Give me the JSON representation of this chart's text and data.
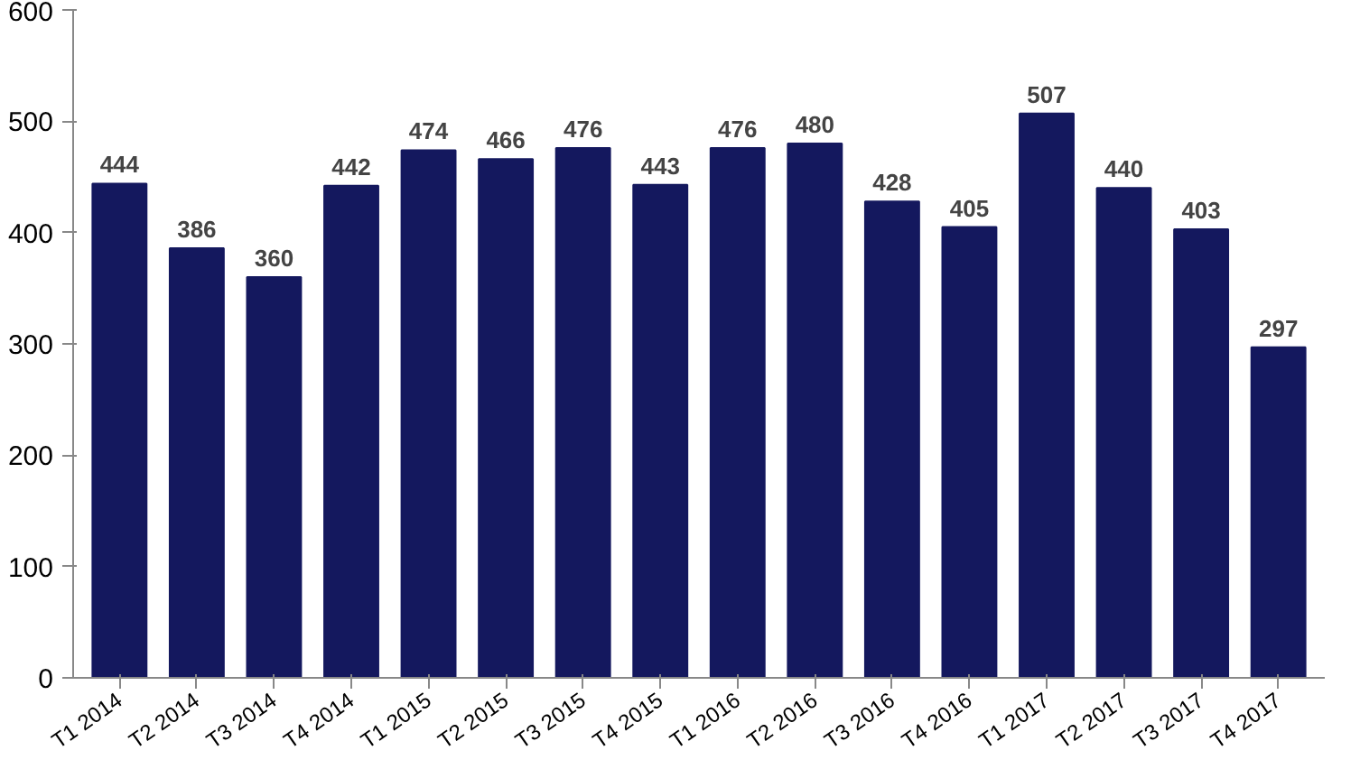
{
  "chart_data": {
    "type": "bar",
    "categories": [
      "T1 2014",
      "T2 2014",
      "T3 2014",
      "T4 2014",
      "T1 2015",
      "T2 2015",
      "T3 2015",
      "T4 2015",
      "T1 2016",
      "T2 2016",
      "T3 2016",
      "T4 2016",
      "T1 2017",
      "T2 2017",
      "T3 2017",
      "T4 2017"
    ],
    "values": [
      444,
      386,
      360,
      442,
      474,
      466,
      476,
      443,
      476,
      480,
      428,
      405,
      507,
      440,
      403,
      297
    ],
    "color": "#14185e",
    "ylim": [
      0,
      600
    ],
    "yticks": [
      0,
      100,
      200,
      300,
      400,
      500,
      600
    ],
    "grid": false,
    "data_labels": true
  }
}
